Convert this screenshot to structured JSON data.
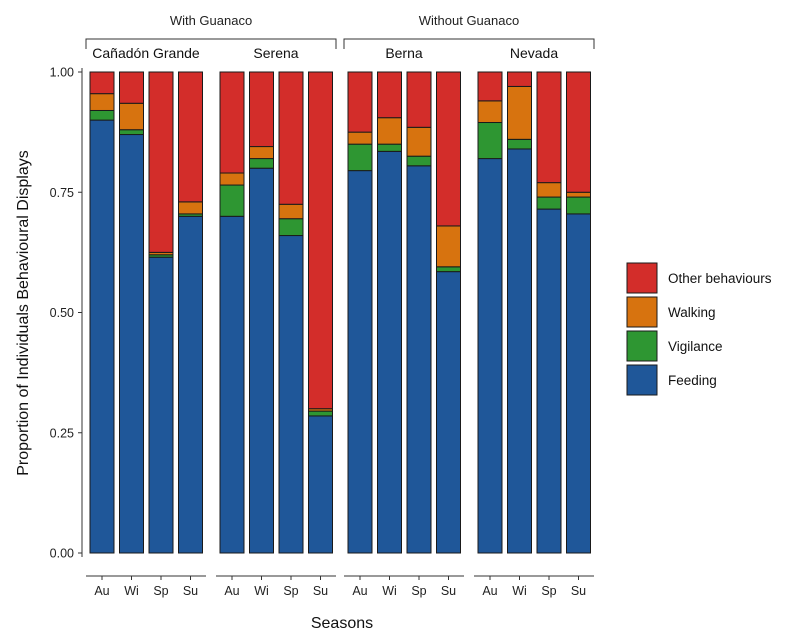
{
  "chart_data": {
    "type": "bar",
    "stacked": true,
    "ylabel": "Proportion of Individuals Behavioural Displays",
    "xlabel": "Seasons",
    "ylim": [
      0,
      1
    ],
    "yticks": [
      "0.00",
      "0.25",
      "0.50",
      "0.75",
      "1.00"
    ],
    "ytick_values": [
      0,
      0.25,
      0.5,
      0.75,
      1
    ],
    "categories": [
      "Au",
      "Wi",
      "Sp",
      "Su"
    ],
    "groups": [
      {
        "label": "With Guanaco",
        "panels": [
          0,
          1
        ]
      },
      {
        "label": "Without Guanaco",
        "panels": [
          2,
          3
        ]
      }
    ],
    "panels": [
      {
        "name": "Cañadón Grande",
        "series": [
          {
            "name": "Feeding",
            "values": [
              0.9,
              0.87,
              0.615,
              0.7
            ]
          },
          {
            "name": "Vigilance",
            "values": [
              0.02,
              0.01,
              0.005,
              0.005
            ]
          },
          {
            "name": "Walking",
            "values": [
              0.035,
              0.055,
              0.005,
              0.025
            ]
          },
          {
            "name": "Other behaviours",
            "values": [
              0.045,
              0.065,
              0.375,
              0.27
            ]
          }
        ]
      },
      {
        "name": "Serena",
        "series": [
          {
            "name": "Feeding",
            "values": [
              0.7,
              0.8,
              0.66,
              0.285
            ]
          },
          {
            "name": "Vigilance",
            "values": [
              0.065,
              0.02,
              0.035,
              0.01
            ]
          },
          {
            "name": "Walking",
            "values": [
              0.025,
              0.025,
              0.03,
              0.005
            ]
          },
          {
            "name": "Other behaviours",
            "values": [
              0.21,
              0.155,
              0.275,
              0.7
            ]
          }
        ]
      },
      {
        "name": "Berna",
        "series": [
          {
            "name": "Feeding",
            "values": [
              0.795,
              0.835,
              0.805,
              0.585
            ]
          },
          {
            "name": "Vigilance",
            "values": [
              0.055,
              0.015,
              0.02,
              0.01
            ]
          },
          {
            "name": "Walking",
            "values": [
              0.025,
              0.055,
              0.06,
              0.085
            ]
          },
          {
            "name": "Other behaviours",
            "values": [
              0.125,
              0.095,
              0.115,
              0.32
            ]
          }
        ]
      },
      {
        "name": "Nevada",
        "series": [
          {
            "name": "Feeding",
            "values": [
              0.82,
              0.84,
              0.715,
              0.705
            ]
          },
          {
            "name": "Vigilance",
            "values": [
              0.075,
              0.02,
              0.025,
              0.035
            ]
          },
          {
            "name": "Walking",
            "values": [
              0.045,
              0.11,
              0.03,
              0.01
            ]
          },
          {
            "name": "Other behaviours",
            "values": [
              0.06,
              0.03,
              0.23,
              0.25
            ]
          }
        ]
      }
    ],
    "legend": {
      "placement": "right",
      "entries": [
        "Other behaviours",
        "Walking",
        "Vigilance",
        "Feeding"
      ]
    },
    "colors": {
      "Feeding": "#1f5799",
      "Vigilance": "#2e9632",
      "Walking": "#d7730f",
      "Other behaviours": "#d32d2a"
    },
    "grid": false
  }
}
